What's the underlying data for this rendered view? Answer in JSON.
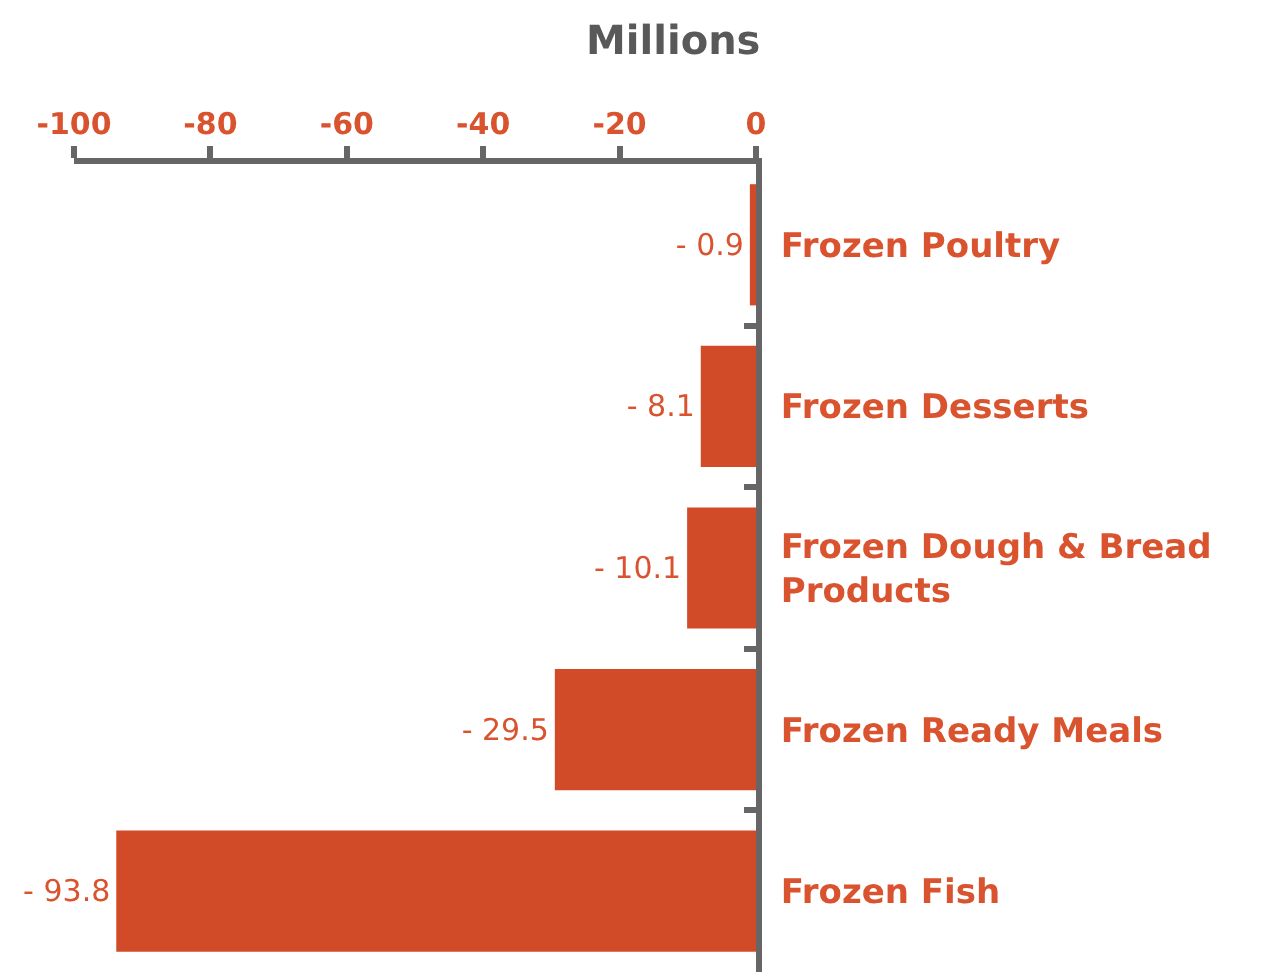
{
  "chart_data": {
    "type": "bar",
    "orientation": "horizontal",
    "xlabel": "Millions",
    "categories": [
      "Frozen Poultry",
      "Frozen Desserts",
      "Frozen Dough & Bread Products",
      "Frozen Ready Meals",
      "Frozen Fish"
    ],
    "values": [
      -0.9,
      -8.1,
      -10.1,
      -29.5,
      -93.8
    ],
    "color": "#d14b29",
    "value_labels": [
      "- 0.9",
      "- 8.1",
      "- 10.1",
      "- 29.5",
      "- 93.8"
    ],
    "xlim": [
      -100,
      0
    ],
    "xticks": [
      -100,
      -80,
      -60,
      -40,
      -20,
      0
    ]
  }
}
